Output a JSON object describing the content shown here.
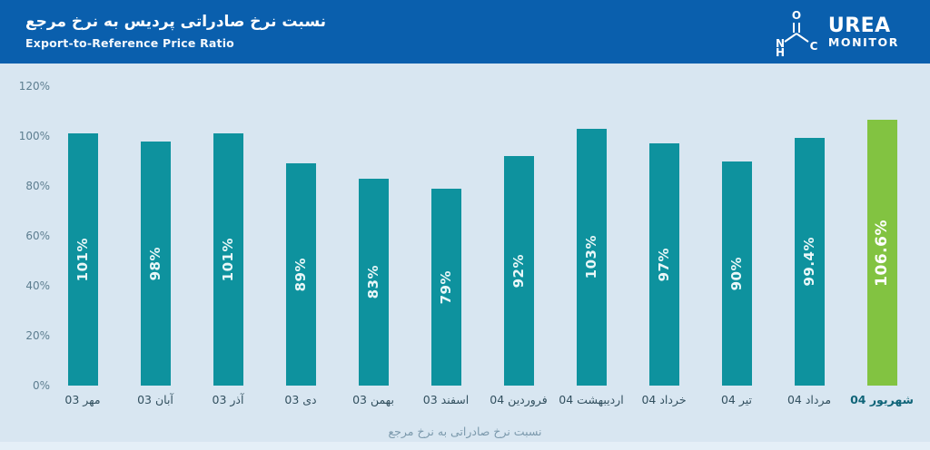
{
  "header": {
    "title_fa": "نسبت نرخ صادراتی پردیس به نرخ مرجع",
    "subtitle_en": "Export-to-Reference Price Ratio",
    "logo": {
      "brand_top": "UREA",
      "brand_bottom": "MONITOR",
      "molecule_atoms": {
        "o": "O",
        "n": "N",
        "h": "H",
        "c": "C"
      }
    }
  },
  "chart_data": {
    "type": "bar",
    "title": "نسبت نرخ صادراتی پردیس به نرخ مرجع",
    "subtitle": "Export-to-Reference Price Ratio",
    "categories": [
      "مهر 03",
      "آبان 03",
      "آذر 03",
      "دی 03",
      "بهمن 03",
      "اسفند 03",
      "فروردین 04",
      "اردیبهشت 04",
      "خرداد 04",
      "تیر 04",
      "مرداد 04",
      "شهریور 04"
    ],
    "values": [
      101,
      98,
      101,
      89,
      83,
      79,
      92,
      103,
      97,
      90,
      99.4,
      106.6
    ],
    "bar_labels": [
      "101%",
      "98%",
      "101%",
      "89%",
      "83%",
      "79%",
      "92%",
      "103%",
      "97%",
      "90%",
      "99.4%",
      "106.6%"
    ],
    "highlight_index": 11,
    "y_ticks": [
      "120%",
      "100%",
      "80%",
      "60%",
      "40%",
      "20%",
      "0%"
    ],
    "ylim": [
      0,
      120
    ],
    "grid": false,
    "legend": false,
    "xlabel": "نسبت نرخ صادراتی به نرخ مرجع",
    "colors": {
      "bar": "#0e929e",
      "highlight_bar": "#82c341",
      "header_bg": "#0a5fad",
      "plot_bg": "#d8e6f1",
      "bar_label_text": "#e9f7f8",
      "axis_text": "#5d7e90",
      "x_label_text": "#32505f",
      "x_label_highlight": "#0f6478"
    }
  },
  "footer": {
    "caption": "نسبت نرخ صادراتی به نرخ مرجع"
  }
}
